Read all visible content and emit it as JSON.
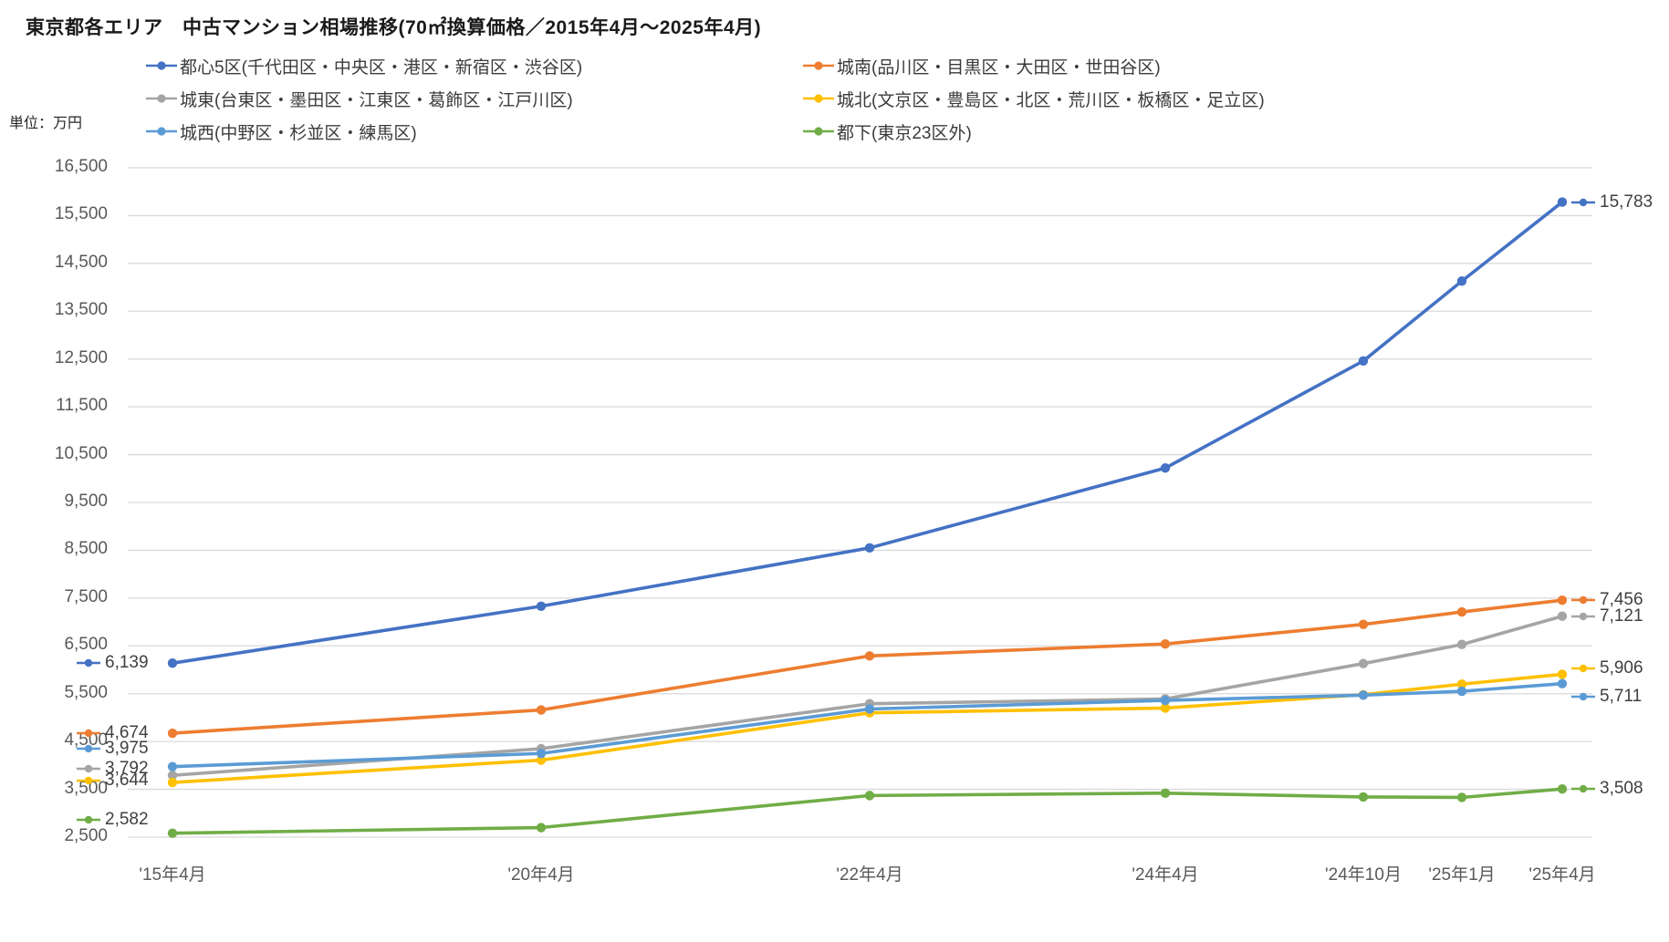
{
  "title": "東京都各エリア　中古マンション相場推移(70㎡換算価格／2015年4月～2025年4月)",
  "unit_label": "単位：万円",
  "chart_data": {
    "type": "line",
    "title": "東京都各エリア　中古マンション相場推移(70㎡換算価格／2015年4月～2025年4月)",
    "ylabel": "単位：万円",
    "xlabel": "",
    "categories": [
      "'15年4月",
      "'20年4月",
      "'22年4月",
      "'24年4月",
      "'24年10月",
      "'25年1月",
      "'25年4月"
    ],
    "series": [
      {
        "name": "都心5区(千代田区・中央区・港区・新宿区・渋谷区)",
        "color": "#4472C4",
        "values": [
          6139,
          7330,
          8550,
          10220,
          12460,
          14130,
          15783
        ]
      },
      {
        "name": "城南(品川区・目黒区・大田区・世田谷区)",
        "color": "#ED7D31",
        "values": [
          4674,
          5160,
          6290,
          6540,
          6950,
          7210,
          7456
        ]
      },
      {
        "name": "城東(台東区・墨田区・江東区・葛飾区・江戸川区)",
        "color": "#A5A5A5",
        "values": [
          3792,
          4350,
          5290,
          5390,
          6130,
          6530,
          7121
        ]
      },
      {
        "name": "城北(文京区・豊島区・北区・荒川区・板橋区・足立区)",
        "color": "#FFC000",
        "values": [
          3644,
          4110,
          5100,
          5200,
          5480,
          5700,
          5906
        ]
      },
      {
        "name": "城西(中野区・杉並区・練馬区)",
        "color": "#5B9BD5",
        "values": [
          3975,
          4250,
          5180,
          5360,
          5470,
          5550,
          5711
        ]
      },
      {
        "name": "都下(東京23区外)",
        "color": "#70AD47",
        "values": [
          2582,
          2700,
          3370,
          3420,
          3340,
          3330,
          3508
        ]
      }
    ],
    "first_point_labels": [
      "6,139",
      "4,674",
      "3,792",
      "3,644",
      "3,975",
      "2,582"
    ],
    "last_point_labels": [
      "15,783",
      "7,456",
      "7,121",
      "5,906",
      "5,711",
      "3,508"
    ],
    "ylim": [
      2500,
      16500
    ],
    "ytick_step": 1000,
    "grid": "horizontal",
    "gridline_color": "#D9D9D9",
    "legend_position": "top"
  }
}
